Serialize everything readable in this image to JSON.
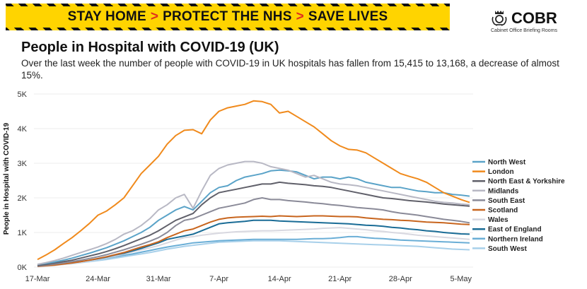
{
  "banner": {
    "part1": "STAY HOME",
    "part2": "PROTECT THE NHS",
    "part3": "SAVE LIVES",
    "separator": ">",
    "colors": {
      "background": "#ffd400",
      "text": "#111111",
      "chevron": "#e0301e"
    }
  },
  "logo": {
    "name": "COBR",
    "subtitle": "Cabinet Office Briefing Rooms",
    "icon": "royal-crest-icon"
  },
  "header": {
    "title": "People in Hospital with COVID-19 (UK)",
    "subtitle": "Over the last week the number of people with COVID-19 in UK hospitals has fallen from 15,415 to 13,168, a decrease of almost 15%."
  },
  "chart_data": {
    "type": "line",
    "ylabel": "People in Hospital with COVID-19",
    "ylim": [
      0,
      5000
    ],
    "y_ticks": [
      {
        "value": 0,
        "label": "0K"
      },
      {
        "value": 1000,
        "label": "1K"
      },
      {
        "value": 2000,
        "label": "2K"
      },
      {
        "value": 3000,
        "label": "3K"
      },
      {
        "value": 4000,
        "label": "4K"
      },
      {
        "value": 5000,
        "label": "5K"
      }
    ],
    "x_ticks": [
      "17-Mar",
      "24-Mar",
      "31-Mar",
      "7-Apr",
      "14-Apr",
      "21-Apr",
      "28-Apr",
      "5-May"
    ],
    "x": [
      "17-Mar",
      "18-Mar",
      "19-Mar",
      "20-Mar",
      "21-Mar",
      "22-Mar",
      "23-Mar",
      "24-Mar",
      "25-Mar",
      "26-Mar",
      "27-Mar",
      "28-Mar",
      "29-Mar",
      "30-Mar",
      "31-Mar",
      "1-Apr",
      "2-Apr",
      "3-Apr",
      "4-Apr",
      "5-Apr",
      "6-Apr",
      "7-Apr",
      "8-Apr",
      "9-Apr",
      "10-Apr",
      "11-Apr",
      "12-Apr",
      "13-Apr",
      "14-Apr",
      "15-Apr",
      "16-Apr",
      "17-Apr",
      "18-Apr",
      "19-Apr",
      "20-Apr",
      "21-Apr",
      "22-Apr",
      "23-Apr",
      "24-Apr",
      "25-Apr",
      "26-Apr",
      "27-Apr",
      "28-Apr",
      "29-Apr",
      "30-Apr",
      "1-May",
      "2-May",
      "3-May",
      "4-May",
      "5-May",
      "6-May"
    ],
    "legend_position": "right",
    "series": [
      {
        "name": "London",
        "color": "#f08a1c",
        "values": [
          220,
          350,
          500,
          680,
          850,
          1050,
          1260,
          1500,
          1620,
          1800,
          2000,
          2350,
          2700,
          2950,
          3200,
          3550,
          3800,
          3950,
          3970,
          3850,
          4250,
          4500,
          4600,
          4650,
          4700,
          4800,
          4780,
          4700,
          4450,
          4500,
          4350,
          4200,
          4050,
          3850,
          3650,
          3500,
          3400,
          3380,
          3300,
          3150,
          3000,
          2850,
          2700,
          2620,
          2550,
          2450,
          2300,
          2150,
          2050,
          1950,
          1870
        ]
      },
      {
        "name": "Midlands",
        "color": "#b8b8c4",
        "values": [
          80,
          130,
          190,
          260,
          340,
          420,
          500,
          580,
          680,
          800,
          950,
          1050,
          1200,
          1400,
          1650,
          1800,
          2000,
          2100,
          1700,
          2200,
          2650,
          2850,
          2950,
          3000,
          3050,
          3050,
          3000,
          2900,
          2850,
          2800,
          2700,
          2600,
          2650,
          2550,
          2450,
          2400,
          2380,
          2350,
          2300,
          2250,
          2200,
          2150,
          2100,
          2050,
          2000,
          1950,
          1900,
          1870,
          1850,
          1820,
          1800
        ]
      },
      {
        "name": "North West",
        "color": "#5aa3c8",
        "values": [
          80,
          110,
          150,
          200,
          260,
          330,
          400,
          480,
          560,
          660,
          760,
          880,
          1000,
          1150,
          1350,
          1500,
          1650,
          1750,
          1650,
          1900,
          2150,
          2300,
          2350,
          2500,
          2600,
          2650,
          2700,
          2780,
          2800,
          2780,
          2750,
          2650,
          2550,
          2600,
          2600,
          2550,
          2600,
          2550,
          2450,
          2400,
          2350,
          2300,
          2300,
          2250,
          2200,
          2180,
          2150,
          2150,
          2100,
          2080,
          2050
        ]
      },
      {
        "name": "North East & Yorkshire",
        "color": "#60606a",
        "values": [
          50,
          80,
          120,
          160,
          200,
          260,
          320,
          380,
          450,
          530,
          620,
          720,
          820,
          920,
          1050,
          1200,
          1350,
          1450,
          1550,
          1800,
          2000,
          2150,
          2200,
          2250,
          2300,
          2350,
          2400,
          2400,
          2450,
          2420,
          2400,
          2380,
          2350,
          2330,
          2300,
          2250,
          2200,
          2150,
          2100,
          2050,
          2000,
          1980,
          1950,
          1920,
          1900,
          1880,
          1850,
          1820,
          1800,
          1780,
          1760
        ]
      },
      {
        "name": "South East",
        "color": "#8a8a98",
        "values": [
          30,
          60,
          90,
          120,
          160,
          200,
          250,
          300,
          360,
          430,
          500,
          580,
          660,
          750,
          850,
          1000,
          1200,
          1350,
          1400,
          1500,
          1600,
          1700,
          1750,
          1800,
          1850,
          1950,
          2000,
          1950,
          1950,
          1920,
          1900,
          1880,
          1850,
          1830,
          1800,
          1780,
          1750,
          1720,
          1700,
          1680,
          1650,
          1600,
          1560,
          1530,
          1500,
          1460,
          1420,
          1380,
          1350,
          1320,
          1280
        ]
      },
      {
        "name": "Scotland",
        "color": "#c8651e",
        "values": [
          20,
          40,
          60,
          90,
          120,
          160,
          200,
          250,
          300,
          360,
          420,
          500,
          580,
          650,
          730,
          850,
          950,
          1050,
          1100,
          1200,
          1300,
          1380,
          1420,
          1440,
          1450,
          1460,
          1470,
          1460,
          1480,
          1470,
          1460,
          1470,
          1480,
          1480,
          1470,
          1460,
          1460,
          1450,
          1420,
          1400,
          1380,
          1370,
          1350,
          1340,
          1320,
          1300,
          1290,
          1280,
          1260,
          1240,
          1230
        ]
      },
      {
        "name": "East of England",
        "color": "#1a6c96",
        "values": [
          30,
          50,
          70,
          100,
          130,
          160,
          200,
          240,
          290,
          350,
          400,
          470,
          540,
          620,
          700,
          800,
          850,
          900,
          950,
          1050,
          1150,
          1250,
          1280,
          1300,
          1320,
          1350,
          1350,
          1350,
          1330,
          1320,
          1310,
          1300,
          1290,
          1280,
          1270,
          1260,
          1250,
          1230,
          1210,
          1200,
          1180,
          1150,
          1130,
          1100,
          1080,
          1050,
          1030,
          1000,
          980,
          960,
          950
        ]
      },
      {
        "name": "Wales",
        "color": "#d8d8e0",
        "values": [
          10,
          30,
          50,
          80,
          110,
          140,
          180,
          220,
          270,
          320,
          380,
          440,
          500,
          560,
          620,
          700,
          780,
          850,
          880,
          920,
          950,
          980,
          1000,
          1020,
          1030,
          1040,
          1050,
          1050,
          1060,
          1070,
          1080,
          1090,
          1100,
          1120,
          1130,
          1140,
          1120,
          1100,
          1080,
          1050,
          1030,
          1000,
          980,
          950,
          920,
          900,
          880,
          860,
          840,
          820,
          800
        ]
      },
      {
        "name": "Northern Ireland",
        "color": "#6aaed6",
        "values": [
          40,
          60,
          80,
          100,
          130,
          160,
          190,
          220,
          260,
          300,
          340,
          380,
          430,
          480,
          530,
          580,
          620,
          660,
          700,
          720,
          740,
          760,
          770,
          780,
          790,
          800,
          800,
          800,
          800,
          800,
          800,
          810,
          820,
          820,
          830,
          850,
          880,
          880,
          850,
          830,
          820,
          800,
          780,
          770,
          760,
          750,
          740,
          730,
          720,
          710,
          700
        ]
      },
      {
        "name": "South West",
        "color": "#a8d0ea",
        "values": [
          20,
          40,
          60,
          80,
          100,
          130,
          160,
          190,
          220,
          260,
          300,
          340,
          380,
          420,
          470,
          520,
          560,
          600,
          630,
          660,
          690,
          720,
          730,
          740,
          750,
          760,
          760,
          760,
          760,
          750,
          740,
          730,
          720,
          710,
          700,
          690,
          680,
          670,
          660,
          650,
          640,
          630,
          620,
          610,
          600,
          580,
          560,
          540,
          520,
          510,
          500
        ]
      }
    ],
    "legend": [
      "North West",
      "London",
      "North East & Yorkshire",
      "Midlands",
      "South East",
      "Scotland",
      "Wales",
      "East of England",
      "Northern Ireland",
      "South West"
    ]
  }
}
